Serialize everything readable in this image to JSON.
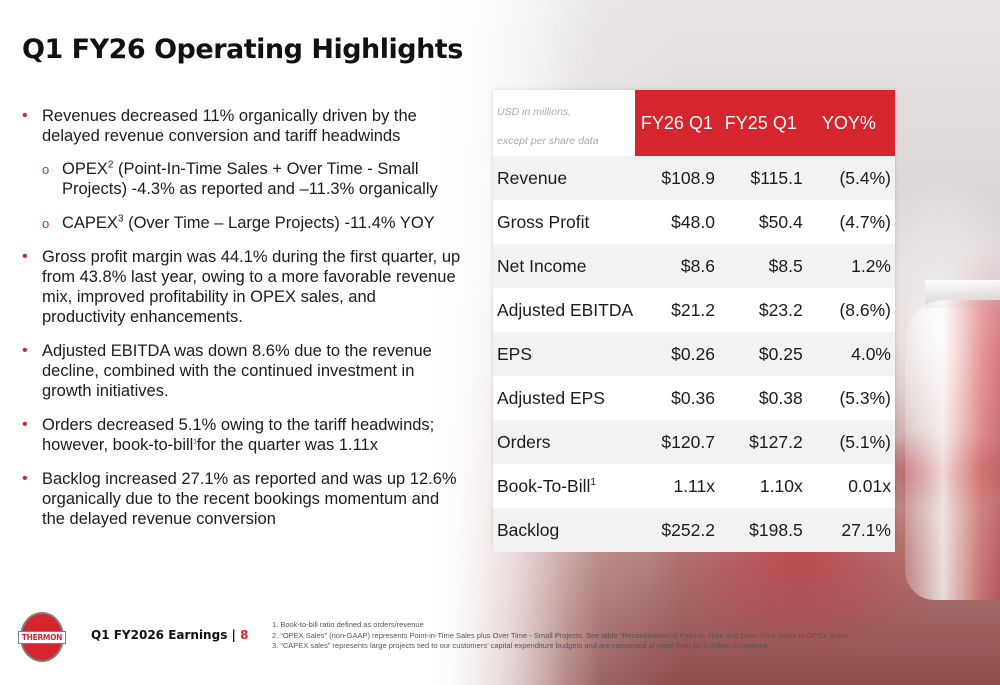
{
  "title": "Q1 FY26 Operating Highlights",
  "bullets": [
    {
      "text": "Revenues decreased 11% organically driven by the delayed revenue conversion and tariff headwinds"
    },
    {
      "text": "Gross profit margin was 44.1% during the first quarter, up from 43.8% last year, owing to a more favorable revenue mix, improved profitability in OPEX sales, and productivity enhancements."
    },
    {
      "text": "Adjusted EBITDA was down 8.6% due to the revenue decline, combined with the continued investment in growth initiatives."
    },
    {
      "text_before": "Orders decreased 5.1% owing to the tariff headwinds; however, book-to-bill",
      "sup": "1",
      "text_after": "for the quarter was 1.11x"
    },
    {
      "text": "Backlog increased 27.1% as reported and was up 12.6% organically due to the recent bookings momentum and the delayed revenue conversion"
    }
  ],
  "sub_bullets": [
    {
      "label": "OPEX",
      "sup": "2",
      "text": " (Point-In-Time Sales + Over Time - Small Projects) -4.3% as reported and –11.3% organically"
    },
    {
      "label": "CAPEX",
      "sup": "3",
      "text": " (Over Time – Large Projects) -11.4% YOY"
    }
  ],
  "table": {
    "unit_line1": "USD in millions,",
    "unit_line2": "except per share data",
    "headers": [
      "FY26 Q1",
      "FY25 Q1",
      "YOY%"
    ],
    "rows": [
      {
        "metric": "Revenue",
        "fy26": "$108.9",
        "fy25": "$115.1",
        "yoy": "(5.4%)"
      },
      {
        "metric": "Gross Profit",
        "fy26": "$48.0",
        "fy25": "$50.4",
        "yoy": "(4.7%)"
      },
      {
        "metric": "Net Income",
        "fy26": "$8.6",
        "fy25": "$8.5",
        "yoy": "1.2%"
      },
      {
        "metric": "Adjusted EBITDA",
        "fy26": "$21.2",
        "fy25": "$23.2",
        "yoy": "(8.6%)"
      },
      {
        "metric": "EPS",
        "fy26": "$0.26",
        "fy25": "$0.25",
        "yoy": "4.0%"
      },
      {
        "metric": "Adjusted EPS",
        "fy26": "$0.36",
        "fy25": "$0.38",
        "yoy": "(5.3%)"
      },
      {
        "metric": "Orders",
        "fy26": "$120.7",
        "fy25": "$127.2",
        "yoy": "(5.1%)"
      },
      {
        "metric": "Book-To-Bill",
        "metric_sup": "1",
        "fy26": "1.11x",
        "fy25": "1.10x",
        "yoy": "0.01x"
      },
      {
        "metric": "Backlog",
        "fy26": "$252.2",
        "fy25": "$198.5",
        "yoy": "27.1%"
      }
    ]
  },
  "footer": {
    "logo_text": "THERMON",
    "label": "Q1 FY2026 Earnings |",
    "page": "8"
  },
  "footnotes": [
    "1.    Book-to-bill ratio defined as orders/revenue",
    "2.    “OPEX Sales” (non-GAAP) represents Point-in-Time Sales plus Over Time - Small Projects. See table “Reconciliation of Point-in-Time and Over-Time Sales to OPEX Sales.”",
    "3.    “CAPEX sales” represents large projects tied to our customers’ capital expenditure budgets and are comprised of more than $0.5 million in revenue."
  ],
  "colors": {
    "accent": "#d7252f",
    "row_stripe": "#f2f2f2"
  }
}
